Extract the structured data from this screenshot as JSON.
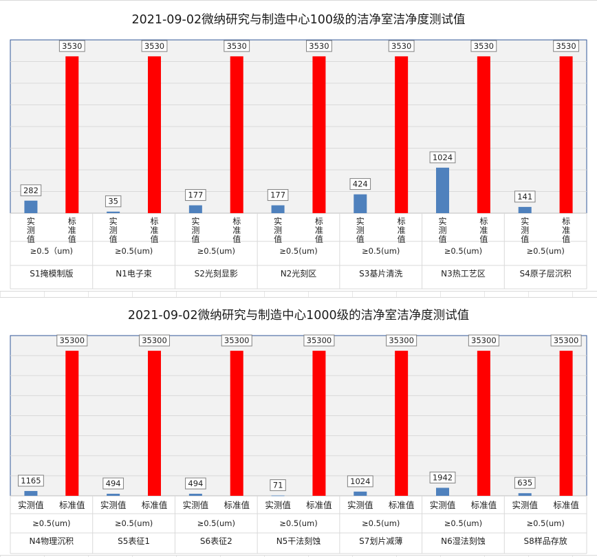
{
  "chart_data": [
    {
      "type": "bar",
      "title": "2021-09-02微纳研究与制造中心100级的洁净室洁净度测试值",
      "categories": [
        "S1掩模制版",
        "N1电子束",
        "S2光刻显影",
        "N2光刻区",
        "S3基片清洗",
        "N3热工艺区",
        "S4原子层沉积"
      ],
      "particle_size_labels": [
        "≥0.5（um)",
        "≥0.5(um)",
        "≥0.5(um)",
        "≥0.5(um)",
        "≥0.5(um)",
        "≥0.5(um)",
        "≥0.5(um)"
      ],
      "series": [
        {
          "name": "实测值",
          "color": "#4f81bd",
          "values": [
            282,
            35,
            177,
            177,
            424,
            1024,
            141
          ]
        },
        {
          "name": "标准值",
          "color": "#ff0000",
          "values": [
            3530,
            3530,
            3530,
            3530,
            3530,
            3530,
            3530
          ]
        }
      ],
      "ylim": [
        0,
        3900
      ],
      "grid": true,
      "series_label_orientation": "vertical",
      "xlabel": "",
      "ylabel": ""
    },
    {
      "type": "bar",
      "title": "2021-09-02微纳研究与制造中心1000级的洁净室洁净度测试值",
      "categories": [
        "N4物理沉积",
        "S5表征1",
        "S6表征2",
        "N5干法刻蚀",
        "S7划片减薄",
        "N6湿法刻蚀",
        "S8样品存放"
      ],
      "particle_size_labels": [
        "≥0.5(um)",
        "≥0.5(um)",
        "≥0.5(um)",
        "≥0.5(um)",
        "≥0.5(um)",
        "≥0.5(um)",
        "≥0.5(um)"
      ],
      "series": [
        {
          "name": "实测值",
          "color": "#4f81bd",
          "values": [
            1165,
            494,
            494,
            71,
            1024,
            1942,
            635
          ]
        },
        {
          "name": "标准值",
          "color": "#ff0000",
          "values": [
            35300,
            35300,
            35300,
            35300,
            35300,
            35300,
            35300
          ]
        }
      ],
      "ylim": [
        0,
        39000
      ],
      "grid": true,
      "series_label_orientation": "horizontal",
      "xlabel": "",
      "ylabel": ""
    }
  ]
}
